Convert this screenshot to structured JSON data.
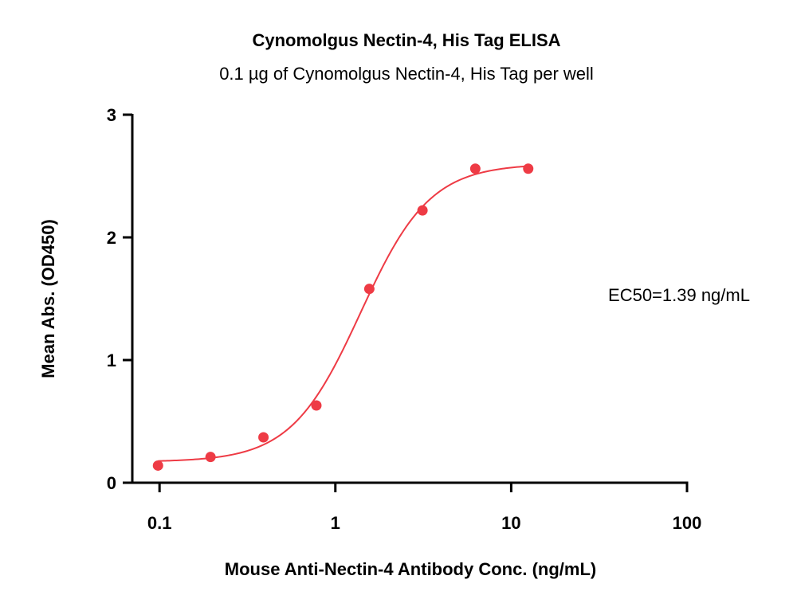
{
  "chart_data": {
    "type": "scatter",
    "title": "Cynomolgus Nectin-4, His Tag ELISA",
    "subtitle": "0.1 µg of Cynomolgus Nectin-4, His Tag per well",
    "xlabel": "Mouse Anti-Nectin-4 Antibody Conc. (ng/mL)",
    "ylabel": "Mean Abs. (OD450)",
    "x_scale": "log",
    "xlim": [
      0.07,
      100
    ],
    "ylim": [
      0,
      3
    ],
    "x_ticks": [
      0.1,
      1,
      10,
      100
    ],
    "x_tick_labels": [
      "0.1",
      "1",
      "10",
      "100"
    ],
    "y_ticks": [
      0,
      1,
      2,
      3
    ],
    "y_tick_labels": [
      "0",
      "1",
      "2",
      "3"
    ],
    "grid": false,
    "annotation": "EC50=1.39 ng/mL",
    "color": "#ee3b45",
    "series": [
      {
        "points": [
          {
            "x": 0.098,
            "y": 0.14
          },
          {
            "x": 0.195,
            "y": 0.21
          },
          {
            "x": 0.39,
            "y": 0.37
          },
          {
            "x": 0.78,
            "y": 0.63
          },
          {
            "x": 1.56,
            "y": 1.58
          },
          {
            "x": 3.13,
            "y": 2.22
          },
          {
            "x": 6.25,
            "y": 2.56
          },
          {
            "x": 12.5,
            "y": 2.56
          }
        ],
        "fit": {
          "bottom": 0.17,
          "top": 2.6,
          "ec50": 1.39,
          "hill": 2.2,
          "x_range": [
            0.098,
            12.5
          ]
        }
      }
    ]
  }
}
